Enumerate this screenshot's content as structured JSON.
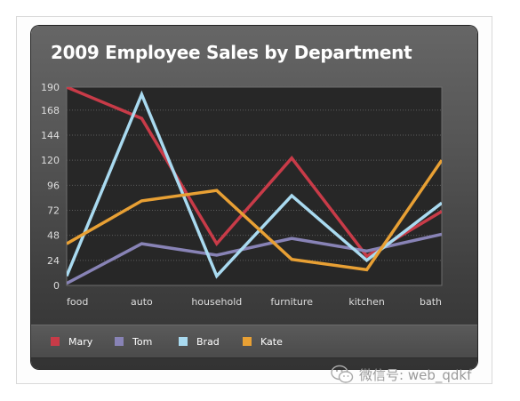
{
  "chart_data": {
    "type": "line",
    "title": "2009 Employee Sales by Department",
    "categories": [
      "food",
      "auto",
      "household",
      "furniture",
      "kitchen",
      "bath"
    ],
    "y_ticks": [
      0,
      24,
      48,
      72,
      96,
      120,
      144,
      168,
      190
    ],
    "ylim": [
      0,
      190
    ],
    "grid": true,
    "legend_position": "bottom",
    "series": [
      {
        "name": "Mary",
        "color": "#c83b48",
        "values": [
          190,
          160,
          40,
          122,
          28,
          71
        ]
      },
      {
        "name": "Tom",
        "color": "#8883b6",
        "values": [
          2,
          40,
          29,
          45,
          33,
          49
        ]
      },
      {
        "name": "Brad",
        "color": "#a9daf0",
        "values": [
          9,
          183,
          9,
          86,
          24,
          79
        ]
      },
      {
        "name": "Kate",
        "color": "#e8a034",
        "values": [
          40,
          81,
          91,
          25,
          15,
          120
        ]
      }
    ]
  },
  "watermark": {
    "text": "微信号: web_qdkf",
    "icon": "wechat-icon"
  }
}
